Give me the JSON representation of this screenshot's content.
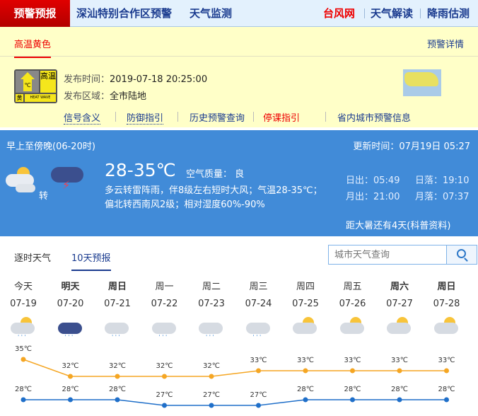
{
  "nav": {
    "brand": "预警预报",
    "links": [
      "深汕特别合作区预警",
      "天气监测"
    ],
    "right": [
      {
        "label": "台风网",
        "color": "#e00000"
      },
      {
        "label": "天气解读",
        "color": "#1a3b8f"
      },
      {
        "label": "降雨估测",
        "color": "#1a3b8f"
      }
    ]
  },
  "warning": {
    "tab": "高温黄色",
    "detail_link": "预警详情",
    "badge": {
      "top": "高温",
      "level": "黄",
      "en": "HEAT WAVE",
      "unit": "℃"
    },
    "time_label": "发布时间：",
    "time": "2019-07-18 20:25:00",
    "area_label": "发布区域：",
    "area": "全市陆地",
    "links": [
      {
        "label": "信号含义",
        "color": "#1a3b8f"
      },
      {
        "label": "防御指引",
        "color": "#1a3b8f"
      },
      {
        "label": "历史预警查询",
        "color": "#1a3b8f"
      },
      {
        "label": "停课指引",
        "color": "#e00000"
      },
      {
        "label": "省内城市预警信息",
        "color": "#1a3b8f"
      }
    ]
  },
  "today": {
    "period": "早上至傍晚(06-20时)",
    "update": "更新时间：07月19日 05:27",
    "temp": "28-35℃",
    "aqi": "空气质量： 良",
    "turn": "转",
    "desc1": "多云转雷阵雨，伴8级左右短时大风；气温28-35℃；",
    "desc2": "偏北转西南风2级；相对湿度60%-90%",
    "sunrise": "日出：05:49",
    "sunset": "日落：19:10",
    "moonrise": "月出：21:00",
    "moonset": "月落：07:37",
    "solar": "距大暑还有4天(科普资料)",
    "icons": [
      "partly-cloudy-icon",
      "thunderstorm-icon"
    ]
  },
  "tabs": [
    "逐时天气",
    "10天预报"
  ],
  "search": {
    "placeholder": "城市天气查询"
  },
  "chart_data": {
    "type": "line",
    "categories": [
      "今天",
      "明天",
      "周日",
      "周一",
      "周二",
      "周三",
      "周四",
      "周五",
      "周六",
      "周日"
    ],
    "dates": [
      "07-19",
      "07-20",
      "07-21",
      "07-22",
      "07-23",
      "07-24",
      "07-25",
      "07-26",
      "07-27",
      "07-28"
    ],
    "icons": [
      "partly-cloudy-rain",
      "heavy-rain",
      "cloudy-rain",
      "cloudy-rain",
      "rain",
      "cloudy-rain",
      "partly-cloudy",
      "partly-cloudy",
      "partly-cloudy",
      "partly-cloudy"
    ],
    "series": [
      {
        "values": [
          35,
          32,
          32,
          32,
          32,
          33,
          33,
          33,
          33,
          33
        ],
        "color": "#f5a623"
      },
      {
        "values": [
          28,
          28,
          28,
          27,
          27,
          27,
          28,
          28,
          28,
          28
        ],
        "color": "#1f6fc9"
      }
    ],
    "unit": "℃"
  }
}
